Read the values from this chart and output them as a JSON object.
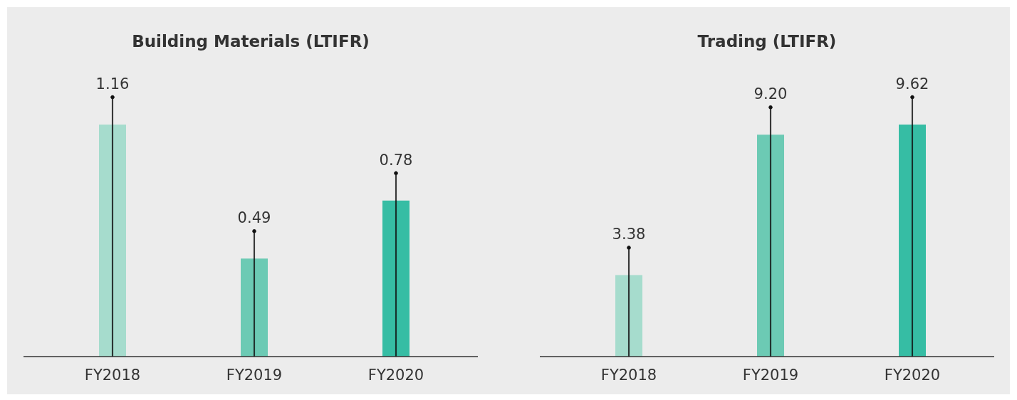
{
  "chart_data": [
    {
      "type": "bar",
      "title": "Building Materials (LTIFR)",
      "categories": [
        "FY2018",
        "FY2019",
        "FY2020"
      ],
      "values": [
        1.16,
        0.49,
        0.78
      ],
      "value_labels": [
        "1.16",
        "0.49",
        "0.78"
      ],
      "colors": [
        "#a6dccd",
        "#6ccab4",
        "#36bda4"
      ]
    },
    {
      "type": "bar",
      "title": "Trading (LTIFR)",
      "categories": [
        "FY2018",
        "FY2019",
        "FY2020"
      ],
      "values": [
        3.38,
        9.2,
        9.62
      ],
      "value_labels": [
        "3.38",
        "9.20",
        "9.62"
      ],
      "colors": [
        "#a6dccd",
        "#6ccab4",
        "#36bda4"
      ]
    }
  ]
}
